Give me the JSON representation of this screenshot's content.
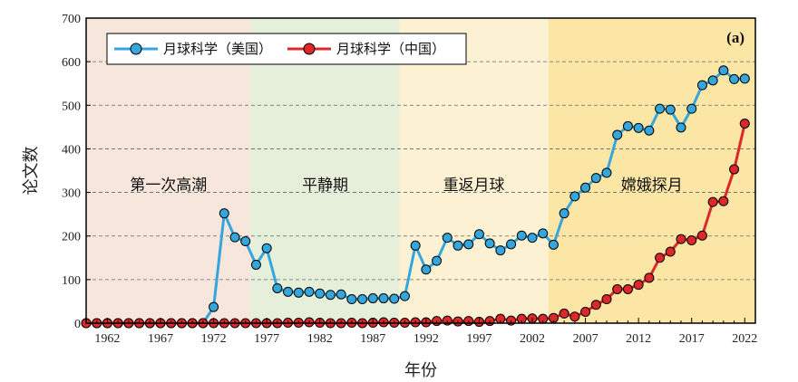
{
  "chart_data": {
    "type": "line",
    "panel_label": "(a)",
    "xlabel": "年份",
    "ylabel": "论文数",
    "xlim": [
      1960,
      2023
    ],
    "ylim": [
      0,
      700
    ],
    "yticks": [
      0,
      100,
      200,
      300,
      400,
      500,
      600,
      700
    ],
    "xticks": [
      1962,
      1967,
      1972,
      1977,
      1982,
      1987,
      1992,
      1997,
      2002,
      2007,
      2012,
      2017,
      2022
    ],
    "grid": "horizontal dashed",
    "legend_placement": "top-left",
    "eras": [
      {
        "label": "第一次高潮",
        "start": 1960,
        "end": 1975.5,
        "color": "#f7e6dc"
      },
      {
        "label": "平静期",
        "start": 1975.5,
        "end": 1989.5,
        "color": "#e5efd9"
      },
      {
        "label": "重返月球",
        "start": 1989.5,
        "end": 2003.5,
        "color": "#fcf2d3"
      },
      {
        "label": "嫦娥探月",
        "start": 2003.5,
        "end": 2023,
        "color": "#fbe6a6"
      }
    ],
    "x": [
      1960,
      1961,
      1962,
      1963,
      1964,
      1965,
      1966,
      1967,
      1968,
      1969,
      1970,
      1971,
      1972,
      1973,
      1974,
      1975,
      1976,
      1977,
      1978,
      1979,
      1980,
      1981,
      1982,
      1983,
      1984,
      1985,
      1986,
      1987,
      1988,
      1989,
      1990,
      1991,
      1992,
      1993,
      1994,
      1995,
      1996,
      1997,
      1998,
      1999,
      2000,
      2001,
      2002,
      2003,
      2004,
      2005,
      2006,
      2007,
      2008,
      2009,
      2010,
      2011,
      2012,
      2013,
      2014,
      2015,
      2016,
      2017,
      2018,
      2019,
      2020,
      2021,
      2022
    ],
    "series": [
      {
        "name": "月球科学（美国）",
        "color": "#35a6dc",
        "values": [
          0,
          0,
          0,
          0,
          0,
          0,
          0,
          0,
          0,
          0,
          0,
          0,
          37,
          252,
          197,
          188,
          134,
          172,
          80,
          72,
          70,
          72,
          68,
          65,
          66,
          55,
          55,
          57,
          57,
          56,
          62,
          178,
          123,
          143,
          196,
          178,
          181,
          204,
          183,
          167,
          181,
          201,
          196,
          206,
          180,
          252,
          291,
          311,
          333,
          345,
          432,
          452,
          448,
          442,
          492,
          490,
          449,
          492,
          546,
          557,
          580,
          560,
          561
        ]
      },
      {
        "name": "月球科学（中国）",
        "color": "#dc2828",
        "values": [
          0,
          0,
          0,
          0,
          0,
          0,
          0,
          0,
          0,
          0,
          0,
          0,
          0,
          0,
          0,
          0,
          0,
          0,
          0,
          1,
          1,
          2,
          1,
          0,
          0,
          1,
          0,
          1,
          2,
          1,
          1,
          2,
          2,
          5,
          6,
          4,
          5,
          3,
          5,
          10,
          6,
          10,
          11,
          10,
          12,
          22,
          15,
          26,
          42,
          55,
          78,
          78,
          88,
          104,
          150,
          164,
          193,
          190,
          201,
          278,
          280,
          353,
          458
        ]
      }
    ]
  }
}
